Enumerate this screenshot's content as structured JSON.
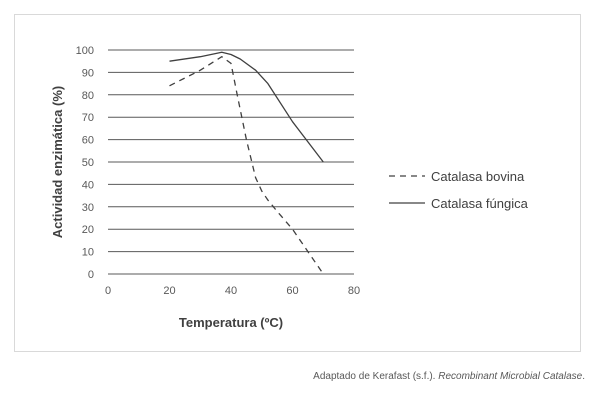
{
  "chart_data": {
    "type": "line",
    "xlabel": "Temperatura (ºC)",
    "ylabel": "Actividad enzimática (%)",
    "xlim": [
      0,
      80
    ],
    "ylim": [
      0,
      100
    ],
    "xticks": [
      "0",
      "20",
      "40",
      "60",
      "80"
    ],
    "yticks": [
      "0",
      "10",
      "20",
      "30",
      "40",
      "50",
      "60",
      "70",
      "80",
      "90",
      "100"
    ],
    "grid": "horizontal",
    "legend_position": "right",
    "series": [
      {
        "name": "Catalasa bovina",
        "style": "dashed",
        "color": "#404040",
        "x": [
          20,
          30,
          37,
          40,
          42,
          45,
          48,
          50,
          52,
          55,
          60,
          65,
          70
        ],
        "y": [
          84,
          91,
          97,
          94,
          80,
          60,
          43,
          37,
          33,
          28,
          20,
          10,
          0
        ]
      },
      {
        "name": "Catalasa fúngica",
        "style": "solid",
        "color": "#404040",
        "x": [
          20,
          30,
          37,
          40,
          43,
          48,
          52,
          60,
          70
        ],
        "y": [
          95,
          97,
          99,
          98,
          96,
          91,
          85,
          68,
          50
        ]
      }
    ]
  },
  "caption": {
    "prefix": "Adaptado de Kerafast (s.f.). ",
    "italic": "Recombinant Microbial Catalase",
    "suffix": "."
  }
}
